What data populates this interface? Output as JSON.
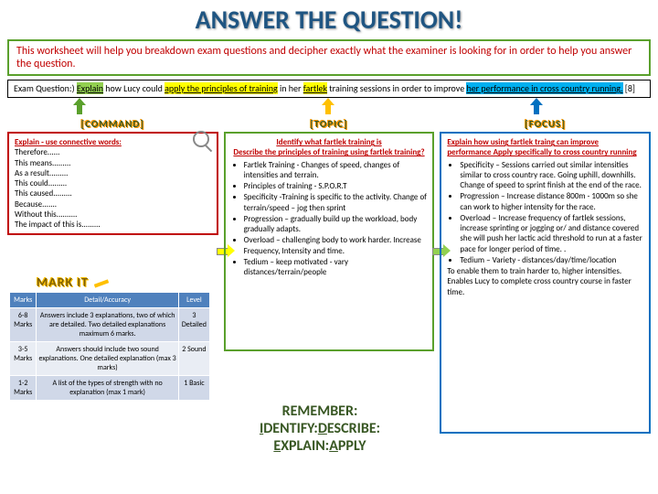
{
  "title": "ANSWER THE QUESTION!",
  "intro": "This worksheet will help you breakdown exam questions and decipher exactly what the examiner is looking for in order to help you answer the question.",
  "question": {
    "prefix": "Exam Question:) ",
    "cmd": "Explain",
    "t1": " how Lucy could ",
    "hl1": "apply the principles of training",
    "t2": " in her ",
    "hl2": "fartlek",
    "t3": " training sessions in order to improve ",
    "hl3": "her performance in cross country running.",
    "marks": " [8]"
  },
  "labels": {
    "c1": "[COMMAND]",
    "c2": "[TOPIC]",
    "c3": "[FOCUS]"
  },
  "box1": {
    "head": "Explain - use connective words:",
    "lines": [
      "Therefore......",
      "This means.........",
      "As a result.........",
      "This could.........",
      "This caused.........",
      "Because.......",
      "Without this..........",
      "The impact of this is........."
    ]
  },
  "box2": {
    "h1": "Identify what fartlek training is",
    "h2": "Describe the principles of training using fartlek training?",
    "items": [
      "Fartlek Training - Changes of speed, changes of intensities and terrain.",
      "Principles of training - S.P.O.R.T",
      "Specificity -Training is specific to the activity. Change of terrain/speed – jog then sprint",
      "Progression – gradually build up the workload, body gradually adapts.",
      "Overload – challenging body to work harder. Increase Frequency, Intensity and time.",
      "Tedium – keep motivated - vary distances/terrain/people"
    ]
  },
  "box3": {
    "h1": "Explain  how using fartlek traing can improve performance Apply specifically to cross country running",
    "items": [
      "Specificity – Sessions carried out similar intensities similar to cross country race. Going uphill, downhills. Change of speed to sprint finish at the end of the race.",
      "Progression – Increase distance 800m - 1000m so she can work to higher intensity for the race.",
      "Overload – Increase frequency of fartlek sessions, increase sprinting or jogging or/ and distance covered she will push her lactic acid threshold to run at a faster pace for longer period of time. .",
      "Tedium – Variety - distances/day/time/location"
    ],
    "tail": "To enable them to train harder to, higher intensities. Enables Lucy to complete cross country course in faster time."
  },
  "markit": {
    "label": "MARK IT",
    "headers": [
      "Marks",
      "Detail/Accuracy",
      "Level"
    ],
    "rows": [
      [
        "6-8 Marks",
        "Answers include 3 explanations, two of which are detailed. Two detailed explanations maximum 6 marks.",
        "3 Detailed"
      ],
      [
        "3-5 Marks",
        "Answers should include two sound explanations. One detailed explanation (max 3 marks)",
        "2 Sound"
      ],
      [
        "1-2 Marks",
        "A list of the types of strength with no explanation (max 1 mark)",
        "1 Basic"
      ]
    ]
  },
  "remember": {
    "l1": "REMEMBER:",
    "l2a": "I",
    "l2b": "DENTIFY:",
    "l2c": "D",
    "l2d": "ESCRIBE:",
    "l3a": "E",
    "l3b": "XPLAIN:",
    "l3c": "A",
    "l3d": "PPLY"
  },
  "colors": {
    "title": "#1f5582",
    "green": "#5aa02c",
    "red": "#c00000",
    "blue": "#0070c0",
    "yellow": "#ffc000",
    "tableHead": "#4f81bd"
  }
}
